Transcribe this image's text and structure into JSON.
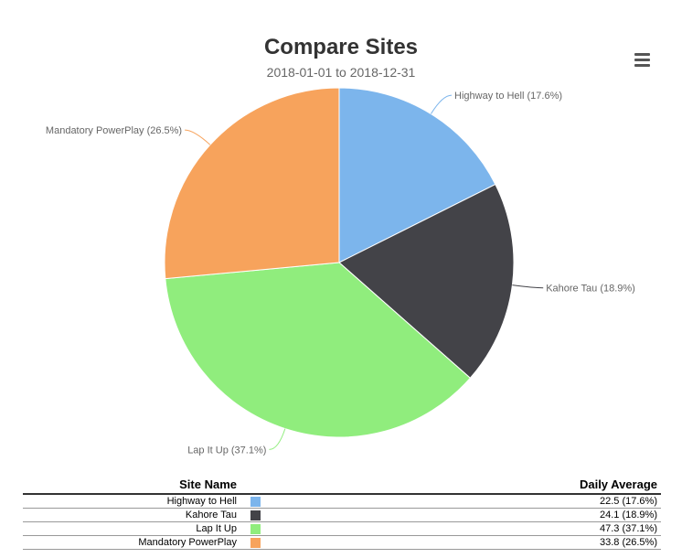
{
  "chart_data": {
    "type": "pie",
    "title": "Compare Sites",
    "subtitle": "2018-01-01 to 2018-12-31",
    "slices": [
      {
        "name": "Highway to Hell",
        "value": 22.5,
        "percent": 17.6,
        "color": "#7cb5ec",
        "label": "Highway to Hell (17.6%)"
      },
      {
        "name": "Kahore Tau",
        "value": 24.1,
        "percent": 18.9,
        "color": "#434348",
        "label": "Kahore Tau (18.9%)"
      },
      {
        "name": "Lap It Up",
        "value": 47.3,
        "percent": 37.1,
        "color": "#90ed7d",
        "label": "Lap It Up (37.1%)"
      },
      {
        "name": "Mandatory PowerPlay",
        "value": 33.8,
        "percent": 26.5,
        "color": "#f7a35c",
        "label": "Mandatory PowerPlay (26.5%)"
      }
    ]
  },
  "menu": {
    "icon": "hamburger-menu-icon"
  },
  "table": {
    "headers": {
      "site_name": "Site Name",
      "daily_average": "Daily Average"
    },
    "rows": [
      {
        "name": "Highway to Hell",
        "color": "#7cb5ec",
        "value": "22.5 (17.6%)"
      },
      {
        "name": "Kahore Tau",
        "color": "#434348",
        "value": "24.1 (18.9%)"
      },
      {
        "name": "Lap It Up",
        "color": "#90ed7d",
        "value": "47.3 (37.1%)"
      },
      {
        "name": "Mandatory PowerPlay",
        "color": "#f7a35c",
        "value": "33.8 (26.5%)"
      }
    ]
  }
}
